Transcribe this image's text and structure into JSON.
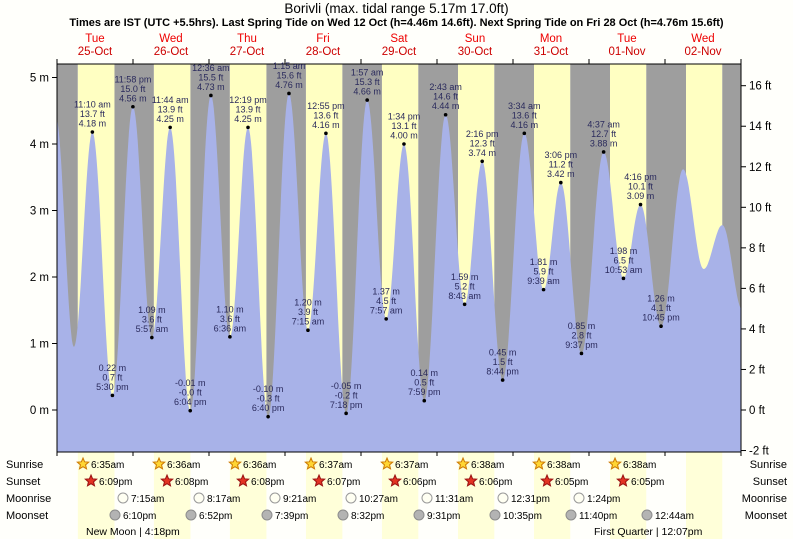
{
  "header": {
    "title": "Borivli (max. tidal range 5.17m 17.0ft)",
    "subtitle": "Times are IST (UTC +5.5hrs). Last Spring Tide on Wed 12 Oct (h=4.46m 14.6ft). Next Spring Tide on Fri 28 Oct (h=4.76m 15.6ft)"
  },
  "chart_data": {
    "type": "area",
    "title": "Borivli (max. tidal range 5.17m 17.0ft)",
    "ylabel_left": "m",
    "ylabel_right": "ft",
    "ylim_m": [
      -0.6,
      5.2
    ],
    "x_days": [
      {
        "day": "Tue",
        "date": "25-Oct"
      },
      {
        "day": "Wed",
        "date": "26-Oct"
      },
      {
        "day": "Thu",
        "date": "27-Oct"
      },
      {
        "day": "Fri",
        "date": "28-Oct"
      },
      {
        "day": "Sat",
        "date": "29-Oct"
      },
      {
        "day": "Sun",
        "date": "30-Oct"
      },
      {
        "day": "Mon",
        "date": "31-Oct"
      },
      {
        "day": "Tue",
        "date": "01-Nov"
      },
      {
        "day": "Wed",
        "date": "02-Nov"
      }
    ],
    "y_left_ticks": [
      {
        "value": 0,
        "label": "0 m"
      },
      {
        "value": 1,
        "label": "1 m"
      },
      {
        "value": 2,
        "label": "2 m"
      },
      {
        "value": 3,
        "label": "3 m"
      },
      {
        "value": 4,
        "label": "4 m"
      },
      {
        "value": 5,
        "label": "5 m"
      }
    ],
    "y_right_ticks": [
      {
        "value": -2,
        "label": "-2 ft"
      },
      {
        "value": 0,
        "label": "0 ft"
      },
      {
        "value": 2,
        "label": "2 ft"
      },
      {
        "value": 4,
        "label": "4 ft"
      },
      {
        "value": 6,
        "label": "6 ft"
      },
      {
        "value": 8,
        "label": "8 ft"
      },
      {
        "value": 10,
        "label": "10 ft"
      },
      {
        "value": 12,
        "label": "12 ft"
      },
      {
        "value": 14,
        "label": "14 ft"
      },
      {
        "value": 16,
        "label": "16 ft"
      }
    ],
    "tide_events": [
      {
        "t": 11.17,
        "m": 4.18,
        "type": "high",
        "time": "11:10 am",
        "ft_label": "13.7 ft",
        "m_label": "4.18 m"
      },
      {
        "t": 17.5,
        "m": 0.22,
        "type": "low",
        "time": "5:30 pm",
        "ft_label": "0.7 ft",
        "m_label": "0.22 m"
      },
      {
        "t": 23.97,
        "m": 4.56,
        "type": "high",
        "time": "11:58 pm",
        "ft_label": "15.0 ft",
        "m_label": "4.56 m"
      },
      {
        "t": 29.95,
        "m": 1.09,
        "type": "low",
        "time": "5:57 am",
        "ft_label": "3.6 ft",
        "m_label": "1.09 m"
      },
      {
        "t": 35.73,
        "m": 4.25,
        "type": "high",
        "time": "11:44 am",
        "ft_label": "13.9 ft",
        "m_label": "4.25 m"
      },
      {
        "t": 42.07,
        "m": -0.01,
        "type": "low",
        "time": "6:04 pm",
        "ft_label": "-0.0 ft",
        "m_label": "-0.01 m"
      },
      {
        "t": 48.6,
        "m": 4.73,
        "type": "high",
        "time": "12:36 am",
        "ft_label": "15.5 ft",
        "m_label": "4.73 m"
      },
      {
        "t": 54.6,
        "m": 1.1,
        "type": "low",
        "time": "6:36 am",
        "ft_label": "3.6 ft",
        "m_label": "1.10 m"
      },
      {
        "t": 60.32,
        "m": 4.25,
        "type": "high",
        "time": "12:19 pm",
        "ft_label": "13.9 ft",
        "m_label": "4.25 m"
      },
      {
        "t": 66.67,
        "m": -0.1,
        "type": "low",
        "time": "6:40 pm",
        "ft_label": "-0.3 ft",
        "m_label": "-0.10 m"
      },
      {
        "t": 73.25,
        "m": 4.76,
        "type": "high",
        "time": "1:15 am",
        "ft_label": "15.6 ft",
        "m_label": "4.76 m"
      },
      {
        "t": 79.25,
        "m": 1.2,
        "type": "low",
        "time": "7:15 am",
        "ft_label": "3.9 ft",
        "m_label": "1.20 m"
      },
      {
        "t": 84.92,
        "m": 4.16,
        "type": "high",
        "time": "12:55 pm",
        "ft_label": "13.6 ft",
        "m_label": "4.16 m"
      },
      {
        "t": 91.3,
        "m": -0.05,
        "type": "low",
        "time": "7:18 pm",
        "ft_label": "-0.2 ft",
        "m_label": "-0.05 m"
      },
      {
        "t": 97.95,
        "m": 4.66,
        "type": "high",
        "time": "1:57 am",
        "ft_label": "15.3 ft",
        "m_label": "4.66 m"
      },
      {
        "t": 103.95,
        "m": 1.37,
        "type": "low",
        "time": "7:57 am",
        "ft_label": "4.5 ft",
        "m_label": "1.37 m"
      },
      {
        "t": 109.57,
        "m": 4.0,
        "type": "high",
        "time": "1:34 pm",
        "ft_label": "13.1 ft",
        "m_label": "4.00 m"
      },
      {
        "t": 115.98,
        "m": 0.14,
        "type": "low",
        "time": "7:59 pm",
        "ft_label": "0.5 ft",
        "m_label": "0.14 m"
      },
      {
        "t": 122.72,
        "m": 4.44,
        "type": "high",
        "time": "2:43 am",
        "ft_label": "14.6 ft",
        "m_label": "4.44 m"
      },
      {
        "t": 128.72,
        "m": 1.59,
        "type": "low",
        "time": "8:43 am",
        "ft_label": "5.2 ft",
        "m_label": "1.59 m"
      },
      {
        "t": 134.27,
        "m": 3.74,
        "type": "high",
        "time": "2:16 pm",
        "ft_label": "12.3 ft",
        "m_label": "3.74 m"
      },
      {
        "t": 140.73,
        "m": 0.45,
        "type": "low",
        "time": "8:44 pm",
        "ft_label": "1.5 ft",
        "m_label": "0.45 m"
      },
      {
        "t": 147.57,
        "m": 4.16,
        "type": "high",
        "time": "3:34 am",
        "ft_label": "13.6 ft",
        "m_label": "4.16 m"
      },
      {
        "t": 153.65,
        "m": 1.81,
        "type": "low",
        "time": "9:39 am",
        "ft_label": "5.9 ft",
        "m_label": "1.81 m"
      },
      {
        "t": 159.1,
        "m": 3.42,
        "type": "high",
        "time": "3:06 pm",
        "ft_label": "11.2 ft",
        "m_label": "3.42 m"
      },
      {
        "t": 165.62,
        "m": 0.85,
        "type": "low",
        "time": "9:37 pm",
        "ft_label": "2.8 ft",
        "m_label": "0.85 m"
      },
      {
        "t": 172.62,
        "m": 3.88,
        "type": "high",
        "time": "4:37 am",
        "ft_label": "12.7 ft",
        "m_label": "3.88 m"
      },
      {
        "t": 178.88,
        "m": 1.98,
        "type": "low",
        "time": "10:53 am",
        "ft_label": "6.5 ft",
        "m_label": "1.98 m"
      },
      {
        "t": 184.27,
        "m": 3.09,
        "type": "high",
        "time": "4:16 pm",
        "ft_label": "10.1 ft",
        "m_label": "3.09 m"
      },
      {
        "t": 190.75,
        "m": 1.26,
        "type": "low",
        "time": "10:45 pm",
        "ft_label": "4.1 ft",
        "m_label": "1.26 m"
      }
    ],
    "curve_padding": {
      "pre": [
        [
          -0.4,
          4.42
        ],
        [
          5.35,
          0.95
        ]
      ],
      "post": [
        [
          197.7,
          3.62
        ],
        [
          204.2,
          2.12
        ],
        [
          210.1,
          2.78
        ],
        [
          216.5,
          1.5
        ]
      ]
    },
    "colors": {
      "night": "#9e9e9e",
      "day": "#ffffc2",
      "day_below": "#ffffd9",
      "tide": "#a8b2e8",
      "annotation": "#2a2a5c",
      "day_label": "#ee0000",
      "date_label": "#cc0000",
      "axis": "#000000"
    }
  },
  "astro": {
    "sunrise": {
      "label": "Sunrise",
      "times": [
        "6:35am",
        "6:36am",
        "6:36am",
        "6:37am",
        "6:37am",
        "6:38am",
        "6:38am",
        "6:38am"
      ]
    },
    "sunset": {
      "label": "Sunset",
      "times": [
        "6:09pm",
        "6:08pm",
        "6:08pm",
        "6:07pm",
        "6:06pm",
        "6:06pm",
        "6:05pm",
        "6:05pm"
      ]
    },
    "moonrise": {
      "label": "Moonrise",
      "times": [
        "7:15am",
        "8:17am",
        "9:21am",
        "10:27am",
        "11:31am",
        "12:31pm",
        "1:24pm"
      ]
    },
    "moonset": {
      "label": "Moonset",
      "times": [
        "6:10pm",
        "6:52pm",
        "7:39pm",
        "8:32pm",
        "9:31pm",
        "10:35pm",
        "11:40pm",
        "12:44am"
      ]
    },
    "phases": [
      {
        "name": "New Moon",
        "time": "4:18pm"
      },
      {
        "name": "First Quarter",
        "time": "12:07pm"
      }
    ]
  }
}
